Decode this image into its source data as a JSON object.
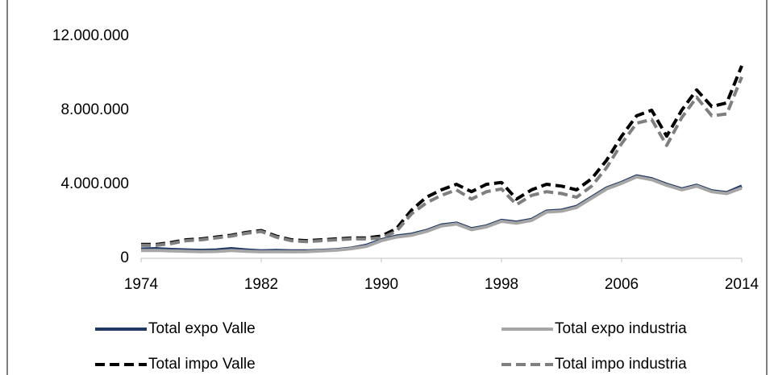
{
  "chart_data": {
    "type": "line",
    "x": [
      1974,
      1975,
      1976,
      1977,
      1978,
      1979,
      1980,
      1981,
      1982,
      1983,
      1984,
      1985,
      1986,
      1987,
      1988,
      1989,
      1990,
      1991,
      1992,
      1993,
      1994,
      1995,
      1996,
      1997,
      1998,
      1999,
      2000,
      2001,
      2002,
      2003,
      2004,
      2005,
      2006,
      2007,
      2008,
      2009,
      2010,
      2011,
      2012,
      2013,
      2014
    ],
    "xlim": [
      1974,
      2014
    ],
    "xticks": [
      1974,
      1982,
      1990,
      1998,
      2006,
      2014
    ],
    "ylim": [
      0,
      12000000
    ],
    "yticks": [
      0,
      {
        "value": 4000000,
        "label": "4.000.000"
      },
      {
        "value": 8000000,
        "label": "8.000.000"
      },
      {
        "value": 12000000,
        "label": "12.000.000"
      }
    ],
    "series": [
      {
        "name": "Total expo Valle",
        "color": "#1f3864",
        "dash": false,
        "values": [
          500000,
          520000,
          480000,
          450000,
          430000,
          450000,
          520000,
          450000,
          400000,
          420000,
          400000,
          400000,
          430000,
          470000,
          550000,
          700000,
          1000000,
          1200000,
          1300000,
          1500000,
          1800000,
          1900000,
          1600000,
          1750000,
          2050000,
          1950000,
          2100000,
          2550000,
          2600000,
          2800000,
          3300000,
          3800000,
          4100000,
          4450000,
          4300000,
          4000000,
          3750000,
          3950000,
          3650000,
          3550000,
          3900000
        ]
      },
      {
        "name": "Total expo industria",
        "color": "#a6a6a6",
        "dash": false,
        "values": [
          420000,
          430000,
          400000,
          380000,
          360000,
          370000,
          420000,
          380000,
          350000,
          360000,
          350000,
          360000,
          400000,
          440000,
          520000,
          650000,
          950000,
          1150000,
          1250000,
          1450000,
          1750000,
          1850000,
          1550000,
          1700000,
          2000000,
          1900000,
          2050000,
          2500000,
          2550000,
          2750000,
          3250000,
          3750000,
          4050000,
          4400000,
          4250000,
          3950000,
          3700000,
          3900000,
          3600000,
          3500000,
          3800000
        ]
      },
      {
        "name": "Total impo Valle",
        "color": "#000000",
        "dash": true,
        "values": [
          750000,
          750000,
          850000,
          1000000,
          1050000,
          1150000,
          1250000,
          1400000,
          1500000,
          1200000,
          1000000,
          950000,
          1000000,
          1050000,
          1100000,
          1100000,
          1200000,
          1600000,
          2600000,
          3300000,
          3700000,
          4000000,
          3600000,
          4000000,
          4100000,
          3200000,
          3700000,
          4000000,
          3900000,
          3700000,
          4300000,
          5300000,
          6600000,
          7700000,
          8000000,
          6600000,
          8000000,
          9100000,
          8200000,
          8400000,
          10400000
        ]
      },
      {
        "name": "Total impo industria",
        "color": "#7f7f7f",
        "dash": true,
        "values": [
          700000,
          700000,
          800000,
          950000,
          1000000,
          1100000,
          1200000,
          1350000,
          1450000,
          1150000,
          950000,
          900000,
          950000,
          1000000,
          1050000,
          1050000,
          1100000,
          1450000,
          2400000,
          3000000,
          3400000,
          3700000,
          3200000,
          3600000,
          3750000,
          2900000,
          3400000,
          3600000,
          3500000,
          3300000,
          3900000,
          4900000,
          6200000,
          7300000,
          7500000,
          6100000,
          7600000,
          8700000,
          7700000,
          7800000,
          9800000
        ]
      }
    ]
  }
}
